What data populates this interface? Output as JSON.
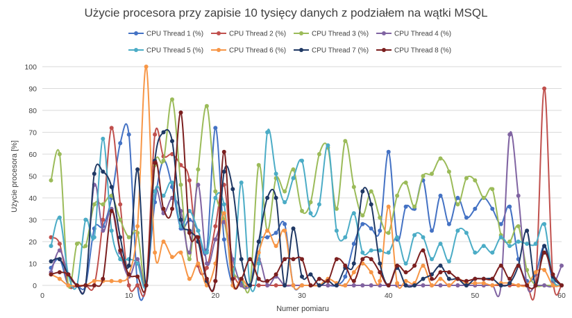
{
  "chart_data": {
    "type": "line",
    "title": "Użycie procesora przy zapisie 10 tysięcy danych z podziałem na wątki  MSQL",
    "xlabel": "Numer pomiaru",
    "ylabel": "Użycie procesora [%]",
    "xlim": [
      0,
      60
    ],
    "ylim": [
      0,
      100
    ],
    "x_ticks": [
      0,
      10,
      20,
      30,
      40,
      50,
      60
    ],
    "y_ticks": [
      0,
      10,
      20,
      30,
      40,
      50,
      60,
      70,
      80,
      90,
      100
    ],
    "grid": "horizontal",
    "legend": "top",
    "smooth": true,
    "x": [
      1,
      2,
      3,
      4,
      5,
      6,
      7,
      8,
      9,
      10,
      11,
      12,
      13,
      14,
      15,
      16,
      17,
      18,
      19,
      20,
      21,
      22,
      23,
      24,
      25,
      26,
      27,
      28,
      29,
      30,
      31,
      32,
      33,
      34,
      35,
      36,
      37,
      38,
      39,
      40,
      41,
      42,
      43,
      44,
      45,
      46,
      47,
      48,
      49,
      50,
      51,
      52,
      53,
      54,
      55,
      56,
      57,
      58,
      59,
      60
    ],
    "series": [
      {
        "name": "CPU Thread 1 (%)",
        "color": "#4472c4",
        "values": [
          8,
          12,
          0,
          0,
          0,
          26,
          27,
          40,
          65,
          69,
          0,
          0,
          38,
          57,
          45,
          26,
          30,
          25,
          16,
          72,
          21,
          0,
          1,
          0,
          20,
          22,
          24,
          28,
          0,
          0,
          0,
          0,
          0,
          0,
          4,
          19,
          28,
          26,
          25,
          61,
          21,
          36,
          35,
          48,
          25,
          41,
          28,
          40,
          31,
          35,
          40,
          35,
          28,
          36,
          12,
          2,
          5,
          18,
          2,
          0
        ]
      },
      {
        "name": "CPU Thread 2 (%)",
        "color": "#c0504d",
        "values": [
          22,
          19,
          0,
          0,
          0,
          0,
          30,
          72,
          37,
          0,
          0,
          0,
          69,
          59,
          60,
          55,
          48,
          9,
          8,
          27,
          46,
          8,
          0,
          0,
          0,
          0,
          0,
          0,
          0,
          0,
          0,
          0,
          0,
          0,
          0,
          0,
          0,
          0,
          0,
          0,
          0,
          0,
          0,
          0,
          0,
          0,
          0,
          0,
          0,
          0,
          0,
          0,
          0,
          0,
          0,
          0,
          0,
          90,
          3,
          0
        ]
      },
      {
        "name": "CPU Thread 3 (%)",
        "color": "#9bbb59",
        "values": [
          48,
          60,
          0,
          19,
          18,
          37,
          37,
          41,
          30,
          22,
          24,
          0,
          55,
          57,
          85,
          46,
          12,
          53,
          82,
          43,
          30,
          7,
          3,
          0,
          55,
          25,
          49,
          43,
          53,
          34,
          38,
          60,
          63,
          35,
          66,
          45,
          32,
          43,
          31,
          24,
          41,
          47,
          36,
          50,
          51,
          58,
          52,
          37,
          49,
          48,
          40,
          44,
          23,
          20,
          27,
          7,
          0,
          0,
          0,
          0
        ]
      },
      {
        "name": "CPU Thread 4 (%)",
        "color": "#8064a2",
        "values": [
          6,
          16,
          5,
          0,
          0,
          46,
          25,
          35,
          15,
          4,
          12,
          0,
          43,
          33,
          40,
          34,
          15,
          46,
          10,
          21,
          29,
          12,
          0,
          0,
          12,
          0,
          4,
          0,
          0,
          0,
          0,
          0,
          0,
          0,
          0,
          0,
          0,
          0,
          0,
          0,
          0,
          0,
          0,
          0,
          0,
          0,
          0,
          0,
          0,
          0,
          0,
          0,
          0,
          69,
          41,
          0,
          0,
          0,
          0,
          9
        ]
      },
      {
        "name": "CPU Thread 5 (%)",
        "color": "#4bacc6",
        "values": [
          18,
          31,
          5,
          0,
          30,
          22,
          67,
          25,
          12,
          12,
          10,
          0,
          43,
          41,
          47,
          27,
          34,
          25,
          15,
          40,
          37,
          3,
          47,
          0,
          10,
          70,
          51,
          38,
          49,
          57,
          33,
          37,
          64,
          25,
          22,
          33,
          15,
          16,
          16,
          15,
          22,
          10,
          23,
          22,
          12,
          19,
          11,
          25,
          24,
          15,
          18,
          15,
          22,
          18,
          20,
          19,
          19,
          28,
          3,
          0
        ]
      },
      {
        "name": "CPU Thread 6 (%)",
        "color": "#f79646",
        "values": [
          5,
          3,
          0,
          0,
          0,
          2,
          2,
          2,
          2,
          5,
          27,
          100,
          15,
          20,
          13,
          15,
          3,
          10,
          0,
          10,
          33,
          0,
          3,
          0,
          15,
          25,
          18,
          25,
          0,
          0,
          0,
          0,
          3,
          1,
          0,
          6,
          10,
          6,
          2,
          36,
          1,
          2,
          1,
          9,
          0,
          3,
          0,
          3,
          1,
          1,
          1,
          0,
          1,
          1,
          0,
          0,
          6,
          7,
          0,
          0
        ]
      },
      {
        "name": "CPU Thread 7 (%)",
        "color": "#1f3864",
        "values": [
          11,
          12,
          5,
          0,
          0,
          51,
          52,
          45,
          22,
          9,
          53,
          0,
          57,
          70,
          66,
          30,
          25,
          20,
          2,
          2,
          52,
          44,
          12,
          0,
          20,
          40,
          40,
          0,
          26,
          4,
          5,
          0,
          2,
          0,
          8,
          10,
          43,
          37,
          10,
          0,
          8,
          0,
          0,
          3,
          5,
          9,
          3,
          3,
          0,
          3,
          3,
          3,
          0,
          1,
          9,
          25,
          0,
          18,
          4,
          0
        ]
      },
      {
        "name": "CPU Thread 8 (%)",
        "color": "#7b1f1f",
        "values": [
          5,
          6,
          5,
          0,
          0,
          0,
          3,
          34,
          16,
          5,
          4,
          0,
          56,
          35,
          35,
          79,
          24,
          22,
          3,
          2,
          61,
          3,
          3,
          12,
          3,
          2,
          5,
          12,
          12,
          12,
          0,
          3,
          2,
          12,
          9,
          2,
          12,
          12,
          6,
          0,
          9,
          6,
          9,
          16,
          3,
          6,
          6,
          3,
          2,
          3,
          3,
          3,
          9,
          3,
          9,
          0,
          0,
          15,
          5,
          0
        ]
      }
    ]
  }
}
